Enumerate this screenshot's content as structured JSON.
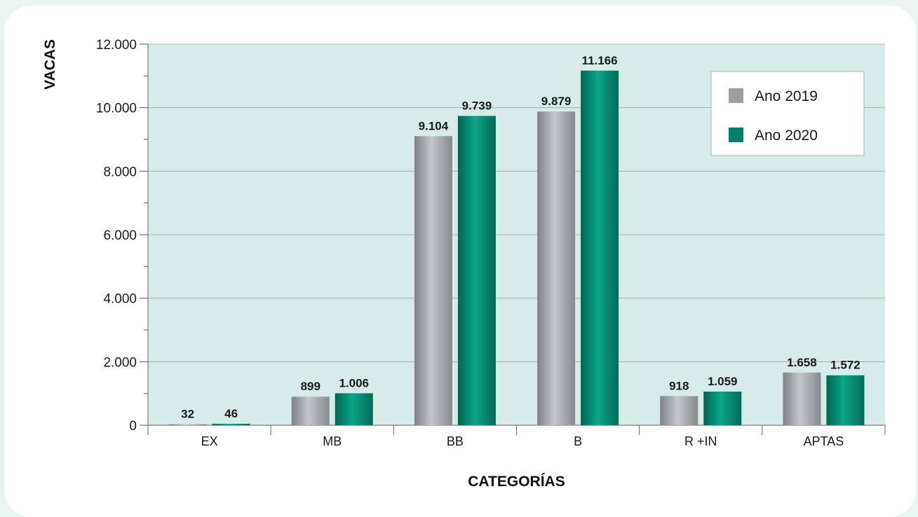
{
  "chart_data": {
    "type": "bar",
    "title": "",
    "xlabel": "CATEGORÍAS",
    "ylabel": "VACAS",
    "categories": [
      "EX",
      "MB",
      "BB",
      "B",
      "R +IN",
      "APTAS"
    ],
    "series": [
      {
        "name": "Ano 2019",
        "color": "#9b9ea2",
        "values": [
          32,
          899,
          9104,
          9879,
          918,
          1658
        ],
        "labels": [
          "32",
          "899",
          "9.104",
          "9.879",
          "918",
          "1.658"
        ]
      },
      {
        "name": "Ano 2020",
        "color": "#007f6b",
        "values": [
          46,
          1006,
          9739,
          11166,
          1059,
          1572
        ],
        "labels": [
          "46",
          "1.006",
          "9.739",
          "11.166",
          "1.059",
          "1.572"
        ]
      }
    ],
    "ylim": [
      0,
      12000
    ],
    "yticks": [
      0,
      2000,
      4000,
      6000,
      8000,
      10000,
      12000
    ],
    "ytick_labels": [
      "0",
      "2.000",
      "4.000",
      "6.000",
      "8.000",
      "10.000",
      "12.000"
    ],
    "grid": true,
    "legend_position": "top-right",
    "plot_background": "#d7ece8"
  }
}
